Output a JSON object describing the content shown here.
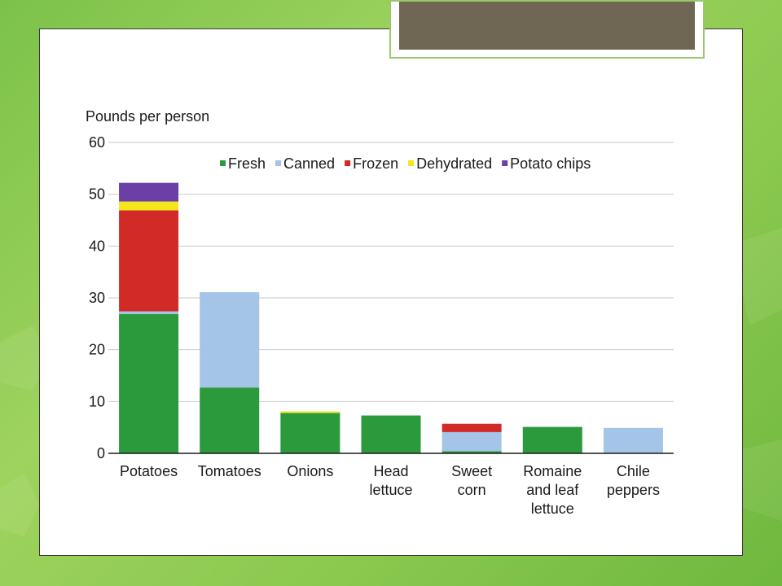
{
  "slide": {
    "background_color": "#8cc94f",
    "title_bar_color": "#6f6653"
  },
  "chart_data": {
    "type": "bar",
    "stacked": true,
    "ylabel": "Pounds per person",
    "xlabel": "",
    "ylim": [
      0,
      60
    ],
    "yticks": [
      0,
      10,
      20,
      30,
      40,
      50,
      60
    ],
    "grid": true,
    "legend_position": "top",
    "categories": [
      [
        "Potatoes"
      ],
      [
        "Tomatoes"
      ],
      [
        "Onions"
      ],
      [
        "Head",
        "lettuce"
      ],
      [
        "Sweet",
        "corn"
      ],
      [
        "Romaine",
        "and leaf",
        "lettuce"
      ],
      [
        "Chile",
        "peppers"
      ]
    ],
    "series": [
      {
        "name": "Fresh",
        "color": "#2a9a3c",
        "values": [
          26.9,
          12.7,
          7.8,
          7.3,
          0.4,
          5.1,
          0.0
        ]
      },
      {
        "name": "Canned",
        "color": "#a4c4e8",
        "values": [
          0.5,
          18.4,
          0.0,
          0.0,
          3.7,
          0.0,
          4.9
        ]
      },
      {
        "name": "Frozen",
        "color": "#d22a26",
        "values": [
          19.5,
          0.0,
          0.0,
          0.0,
          1.6,
          0.0,
          0.0
        ]
      },
      {
        "name": "Dehydrated",
        "color": "#f5e61c",
        "values": [
          1.7,
          0.0,
          0.3,
          0.0,
          0.0,
          0.0,
          0.0
        ]
      },
      {
        "name": "Potato chips",
        "color": "#6a3fa6",
        "values": [
          3.6,
          0.0,
          0.0,
          0.0,
          0.0,
          0.0,
          0.0
        ]
      }
    ]
  }
}
